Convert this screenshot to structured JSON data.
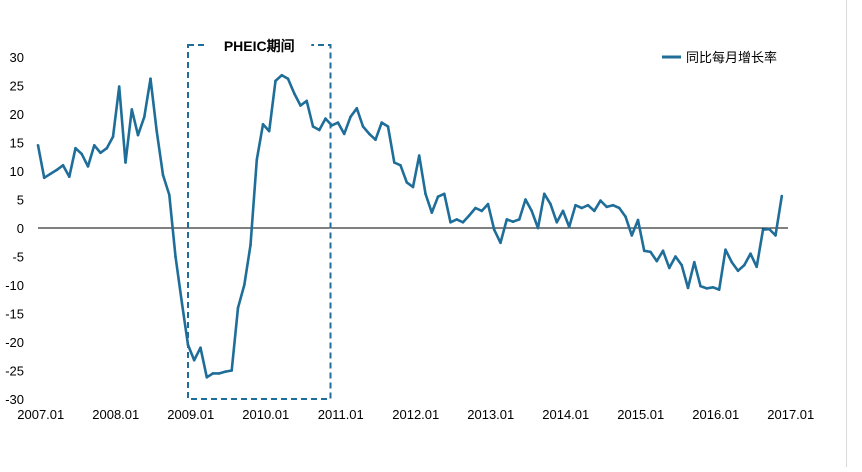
{
  "colors": {
    "series": "#1f6e99",
    "axis": "#000000",
    "highlight_box": "#1f6e99",
    "text": "#000000"
  },
  "chart_data": {
    "type": "line",
    "title": "",
    "xlabel": "",
    "ylabel": "",
    "xlim": [
      2007.0,
      2017.0
    ],
    "ylim": [
      -30,
      30
    ],
    "x_ticks": [
      "2007.01",
      "2008.01",
      "2009.01",
      "2010.01",
      "2011.01",
      "2012.01",
      "2013.01",
      "2014.01",
      "2015.01",
      "2016.01",
      "2017.01"
    ],
    "y_ticks": [
      30,
      25,
      20,
      15,
      10,
      5,
      0,
      -5,
      -10,
      -15,
      -20,
      -25,
      -30
    ],
    "legend": {
      "position": "top-right"
    },
    "annotation": {
      "label": "PHEIC期间",
      "x_start": 2009.0,
      "x_end": 2010.9
    },
    "series": [
      {
        "name": "同比每月增长率",
        "x": [
          2007.0,
          2007.083,
          2007.167,
          2007.25,
          2007.333,
          2007.417,
          2007.5,
          2007.583,
          2007.667,
          2007.75,
          2007.833,
          2007.917,
          2008.0,
          2008.083,
          2008.167,
          2008.25,
          2008.333,
          2008.417,
          2008.5,
          2008.583,
          2008.667,
          2008.75,
          2008.833,
          2008.917,
          2009.0,
          2009.083,
          2009.167,
          2009.25,
          2009.333,
          2009.417,
          2009.5,
          2009.583,
          2009.667,
          2009.75,
          2009.833,
          2009.917,
          2010.0,
          2010.083,
          2010.167,
          2010.25,
          2010.333,
          2010.417,
          2010.5,
          2010.583,
          2010.667,
          2010.75,
          2010.833,
          2010.917,
          2011.0,
          2011.083,
          2011.167,
          2011.25,
          2011.333,
          2011.417,
          2011.5,
          2011.583,
          2011.667,
          2011.75,
          2011.833,
          2011.917,
          2012.0,
          2012.083,
          2012.167,
          2012.25,
          2012.333,
          2012.417,
          2012.5,
          2012.583,
          2012.667,
          2012.75,
          2012.833,
          2012.917,
          2013.0,
          2013.083,
          2013.167,
          2013.25,
          2013.333,
          2013.417,
          2013.5,
          2013.583,
          2013.667,
          2013.75,
          2013.833,
          2013.917,
          2014.0,
          2014.083,
          2014.167,
          2014.25,
          2014.333,
          2014.417,
          2014.5,
          2014.583,
          2014.667,
          2014.75,
          2014.833,
          2014.917,
          2015.0,
          2015.083,
          2015.167,
          2015.25,
          2015.333,
          2015.417,
          2015.5,
          2015.583,
          2015.667,
          2015.75,
          2015.833,
          2015.917,
          2016.0,
          2016.083,
          2016.167,
          2016.25,
          2016.333,
          2016.417,
          2016.5,
          2016.583,
          2016.667,
          2016.75,
          2016.833,
          2016.917
        ],
        "values": [
          14.5,
          8.8,
          9.5,
          10.2,
          11.0,
          9.0,
          14.0,
          13.0,
          10.8,
          14.5,
          13.2,
          14.0,
          16.0,
          24.8,
          11.5,
          20.8,
          16.3,
          19.5,
          26.2,
          17.0,
          9.3,
          5.8,
          -5.0,
          -13.0,
          -20.5,
          -23.2,
          -21.0,
          -26.2,
          -25.5,
          -25.5,
          -25.2,
          -25.0,
          -14.0,
          -10.0,
          -3.0,
          12.0,
          18.2,
          17.0,
          25.8,
          26.8,
          26.2,
          23.6,
          21.5,
          22.3,
          17.8,
          17.2,
          19.2,
          18.0,
          18.5,
          16.5,
          19.5,
          21.0,
          17.8,
          16.5,
          15.5,
          18.5,
          17.8,
          11.5,
          11.0,
          8.0,
          7.2,
          12.7,
          6.0,
          2.7,
          5.5,
          6.0,
          1.0,
          1.5,
          1.0,
          2.2,
          3.5,
          3.0,
          4.2,
          -0.3,
          -2.6,
          1.5,
          1.1,
          1.5,
          5.0,
          3.0,
          0.0,
          6.0,
          4.2,
          1.0,
          3.0,
          0.2,
          4.0,
          3.5,
          4.0,
          3.0,
          4.8,
          3.7,
          4.0,
          3.5,
          2.0,
          -1.3,
          1.4,
          -4.0,
          -4.2,
          -5.8,
          -4.0,
          -7.0,
          -5.0,
          -6.5,
          -10.5,
          -6.0,
          -10.2,
          -10.6,
          -10.4,
          -10.8,
          -3.8,
          -6.0,
          -7.5,
          -6.5,
          -4.5,
          -6.8,
          -0.3,
          -0.2,
          -1.3,
          5.6
        ]
      }
    ]
  }
}
